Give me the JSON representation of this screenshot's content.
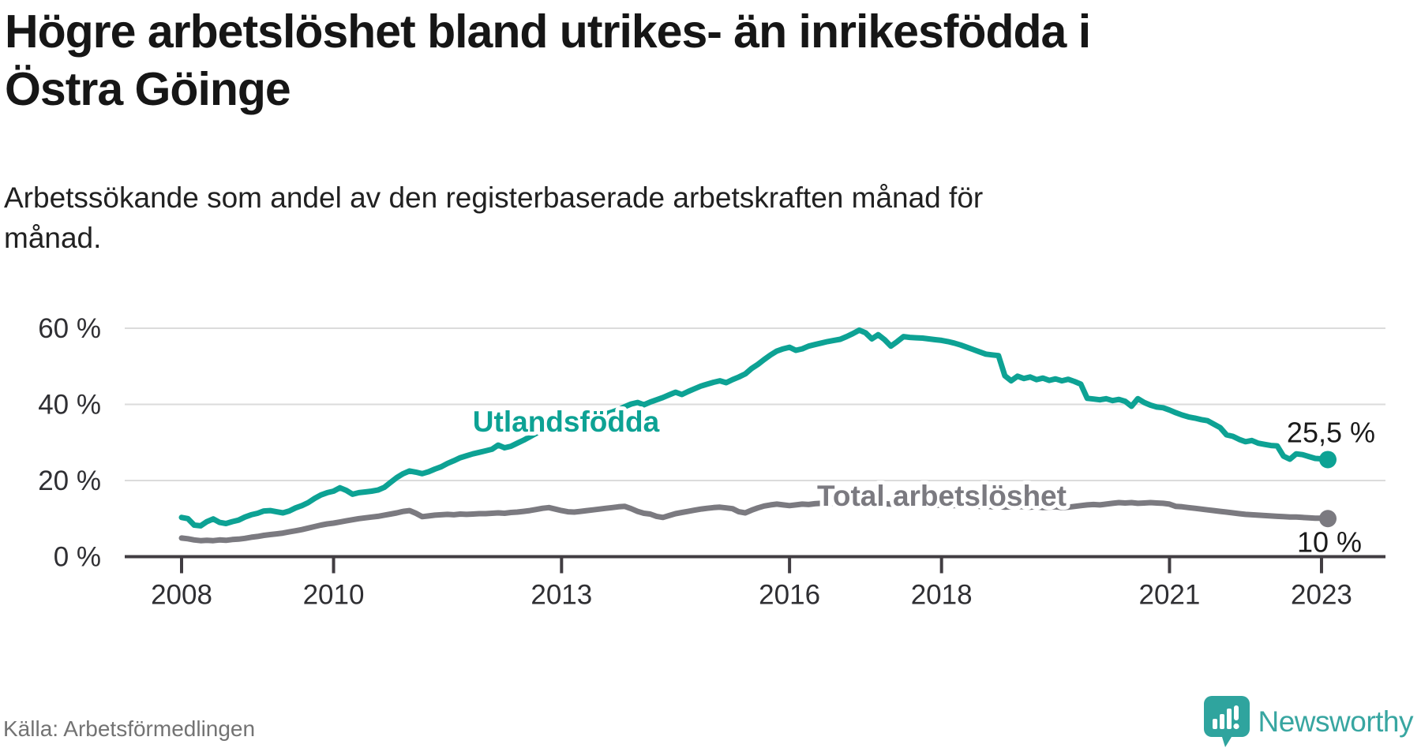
{
  "title": "Högre arbetslöshet bland utrikes- än inrikesfödda i Östra Göinge",
  "title_lines": [
    "Högre arbetslöshet bland utrikes- än inrikesfödda i",
    "Östra Göinge"
  ],
  "subtitle": "Arbetssökande som andel av den registerbaserade arbetskraften månad för månad.",
  "subtitle_lines": [
    "Arbetssökande som andel av den registerbaserade arbetskraften månad för",
    "månad."
  ],
  "source": "Källa: Arbetsförmedlingen",
  "logo": {
    "text": "Newsworthy"
  },
  "colors": {
    "teal": "#0da294",
    "gray": "#7b7a80",
    "axis": "#413d42",
    "gridline": "#dbdbdb",
    "tick_label": "#2f2f33",
    "annotation": "#1a1a1a",
    "halo": "#ffffff",
    "logo_teal": "#2fa49e"
  },
  "chart_data": {
    "type": "line",
    "title": "Högre arbetslöshet bland utrikes- än inrikesfödda i Östra Göinge",
    "xlabel": "",
    "ylabel": "Arbetssökande som andel av den registerbaserade arbetskraften",
    "x_domain": {
      "start_year": 2008,
      "start_month": 1,
      "end_year": 2023,
      "end_month": 2,
      "step": "month"
    },
    "ylim": [
      0,
      65
    ],
    "grid": "horizontal",
    "legend_position": "inline-labels",
    "x_ticks": [
      {
        "label": "2008",
        "year": 2008
      },
      {
        "label": "2010",
        "year": 2010
      },
      {
        "label": "2013",
        "year": 2013
      },
      {
        "label": "2016",
        "year": 2016
      },
      {
        "label": "2018",
        "year": 2018
      },
      {
        "label": "2021",
        "year": 2021
      },
      {
        "label": "2023",
        "year": 2023
      }
    ],
    "y_ticks": [
      {
        "label": "0 %",
        "value": 0
      },
      {
        "label": "20 %",
        "value": 20
      },
      {
        "label": "40 %",
        "value": 40
      },
      {
        "label": "60 %",
        "value": 60
      }
    ],
    "series": [
      {
        "name": "Utlandsfödda",
        "color": "#0da294",
        "end_label": "25,5 %",
        "end_value": 25.5,
        "values": [
          10.3,
          10.0,
          8.3,
          8.1,
          9.2,
          9.9,
          9.0,
          8.7,
          9.2,
          9.6,
          10.4,
          11.0,
          11.4,
          12.0,
          12.1,
          11.8,
          11.5,
          12.0,
          12.8,
          13.4,
          14.2,
          15.3,
          16.2,
          16.8,
          17.2,
          18.1,
          17.4,
          16.4,
          16.8,
          17.0,
          17.2,
          17.5,
          18.2,
          19.5,
          20.8,
          21.8,
          22.5,
          22.2,
          21.8,
          22.3,
          23.0,
          23.6,
          24.5,
          25.2,
          26.0,
          26.5,
          27.0,
          27.4,
          27.8,
          28.2,
          29.3,
          28.6,
          29.0,
          29.8,
          30.6,
          31.5,
          32.4,
          33.2,
          33.8,
          34.0,
          34.2,
          34.8,
          35.1,
          34.6,
          35.3,
          36.0,
          36.8,
          37.5,
          38.0,
          38.6,
          39.4,
          40.1,
          40.5,
          39.9,
          40.6,
          41.2,
          41.8,
          42.5,
          43.2,
          42.6,
          43.4,
          44.1,
          44.8,
          45.3,
          45.8,
          46.2,
          45.7,
          46.5,
          47.2,
          48.0,
          49.4,
          50.5,
          51.8,
          53.0,
          54.0,
          54.6,
          55.0,
          54.2,
          54.6,
          55.3,
          55.7,
          56.1,
          56.5,
          56.8,
          57.1,
          57.8,
          58.6,
          59.5,
          58.8,
          57.2,
          58.3,
          57.0,
          55.3,
          56.5,
          57.8,
          57.6,
          57.5,
          57.4,
          57.2,
          57.0,
          56.8,
          56.5,
          56.1,
          55.6,
          55.0,
          54.4,
          53.8,
          53.2,
          53.0,
          52.8,
          47.5,
          46.2,
          47.4,
          46.8,
          47.2,
          46.5,
          46.9,
          46.3,
          46.7,
          46.2,
          46.6,
          46.0,
          45.3,
          41.6,
          41.4,
          41.2,
          41.5,
          41.0,
          41.3,
          40.8,
          39.5,
          41.5,
          40.5,
          39.8,
          39.3,
          39.1,
          38.5,
          37.8,
          37.2,
          36.7,
          36.4,
          36.0,
          35.7,
          34.8,
          33.9,
          32.0,
          31.6,
          30.8,
          30.2,
          30.5,
          29.8,
          29.5,
          29.2,
          29.1,
          26.4,
          25.6,
          27.0,
          26.8,
          26.3,
          25.8,
          25.7,
          25.5
        ]
      },
      {
        "name": "Total arbetslöshet",
        "color": "#7b7a80",
        "end_label": "10 %",
        "end_value": 10,
        "values": [
          4.9,
          4.7,
          4.4,
          4.2,
          4.3,
          4.2,
          4.4,
          4.3,
          4.5,
          4.6,
          4.8,
          5.1,
          5.3,
          5.6,
          5.8,
          6.0,
          6.2,
          6.5,
          6.8,
          7.1,
          7.5,
          7.9,
          8.3,
          8.6,
          8.8,
          9.1,
          9.4,
          9.7,
          10.0,
          10.2,
          10.4,
          10.6,
          10.9,
          11.2,
          11.5,
          11.9,
          12.1,
          11.4,
          10.5,
          10.7,
          10.9,
          11.0,
          11.1,
          11.0,
          11.2,
          11.1,
          11.2,
          11.3,
          11.3,
          11.4,
          11.5,
          11.4,
          11.6,
          11.7,
          11.9,
          12.1,
          12.4,
          12.7,
          12.9,
          12.5,
          12.1,
          11.8,
          11.7,
          11.9,
          12.1,
          12.3,
          12.5,
          12.7,
          12.9,
          13.1,
          13.2,
          12.6,
          11.9,
          11.4,
          11.2,
          10.6,
          10.3,
          10.8,
          11.3,
          11.6,
          11.9,
          12.2,
          12.5,
          12.7,
          12.9,
          13.0,
          12.8,
          12.6,
          11.8,
          11.5,
          12.2,
          12.8,
          13.3,
          13.6,
          13.8,
          13.6,
          13.4,
          13.6,
          13.8,
          13.7,
          13.9,
          14.0,
          13.9,
          14.1,
          14.0,
          13.9,
          14.1,
          14.0,
          13.9,
          14.0,
          14.1,
          13.9,
          13.8,
          13.9,
          14.0,
          13.8,
          13.7,
          13.8,
          13.6,
          13.5,
          13.6,
          13.5,
          13.4,
          13.5,
          13.3,
          13.4,
          13.2,
          13.3,
          13.1,
          13.2,
          13.0,
          13.1,
          13.2,
          13.1,
          13.0,
          13.1,
          12.9,
          13.0,
          13.1,
          12.9,
          13.0,
          13.2,
          13.4,
          13.6,
          13.7,
          13.6,
          13.8,
          14.0,
          14.2,
          14.1,
          14.2,
          14.0,
          14.1,
          14.2,
          14.1,
          14.0,
          13.8,
          13.2,
          13.1,
          12.9,
          12.7,
          12.5,
          12.3,
          12.1,
          11.9,
          11.7,
          11.5,
          11.3,
          11.1,
          11.0,
          10.9,
          10.8,
          10.7,
          10.6,
          10.5,
          10.4,
          10.4,
          10.3,
          10.2,
          10.1,
          10.1,
          10.0
        ]
      }
    ]
  }
}
